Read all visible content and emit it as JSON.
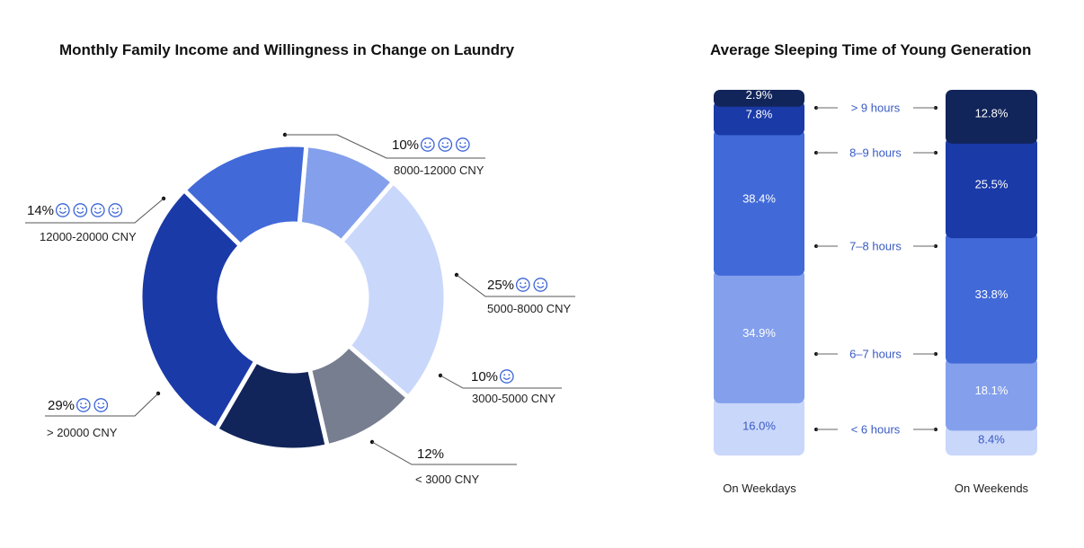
{
  "colors": {
    "c0": "#12255a",
    "c1": "#1a3aa8",
    "c2": "#4169d8",
    "c3": "#84a0ec",
    "c4": "#c9d7fb",
    "gray": "#777e90",
    "smiley": "#3a63d8",
    "mid_label": "#3a5bc4"
  },
  "chart_data": [
    {
      "type": "pie",
      "title": "Monthly Family Income and Willingness in Change on Laundry",
      "slices": [
        {
          "percent_label": "10%",
          "value": 10,
          "category": "8000-12000 CNY",
          "smileys": 3,
          "color_key": "c3"
        },
        {
          "percent_label": "25%",
          "value": 25,
          "category": "5000-8000 CNY",
          "smileys": 2,
          "color_key": "c4"
        },
        {
          "percent_label": "10%",
          "value": 10,
          "category": "3000-5000 CNY",
          "smileys": 1,
          "color_key": "gray"
        },
        {
          "percent_label": "12%",
          "value": 12,
          "category": "< 3000 CNY",
          "smileys": 0,
          "color_key": "c0"
        },
        {
          "percent_label": "29%",
          "value": 29,
          "category": "> 20000 CNY",
          "smileys": 2,
          "color_key": "c1"
        },
        {
          "percent_label": "14%",
          "value": 14,
          "category": "12000-20000 CNY",
          "smileys": 4,
          "color_key": "c2"
        }
      ]
    },
    {
      "type": "bar",
      "stacked": true,
      "title": "Average Sleeping Time of Young Generation",
      "categories": [
        "On Weekdays",
        "On Weekends"
      ],
      "series": [
        {
          "name": "> 9 hours",
          "values": [
            2.9,
            12.8
          ],
          "labels": [
            "2.9%",
            "12.8%"
          ],
          "color_key": "c0"
        },
        {
          "name": "8–9 hours",
          "values": [
            7.8,
            25.5
          ],
          "labels": [
            "7.8%",
            "25.5%"
          ],
          "color_key": "c1"
        },
        {
          "name": "7–8 hours",
          "values": [
            38.4,
            33.8
          ],
          "labels": [
            "38.4%",
            "33.8%"
          ],
          "color_key": "c2"
        },
        {
          "name": "6–7 hours",
          "values": [
            34.9,
            18.1
          ],
          "labels": [
            "34.9%",
            "18.1%"
          ],
          "color_key": "c3"
        },
        {
          "name": "< 6 hours",
          "values": [
            16.0,
            8.4
          ],
          "labels": [
            "16.0%",
            "8.4%"
          ],
          "color_key": "c4"
        }
      ]
    }
  ]
}
